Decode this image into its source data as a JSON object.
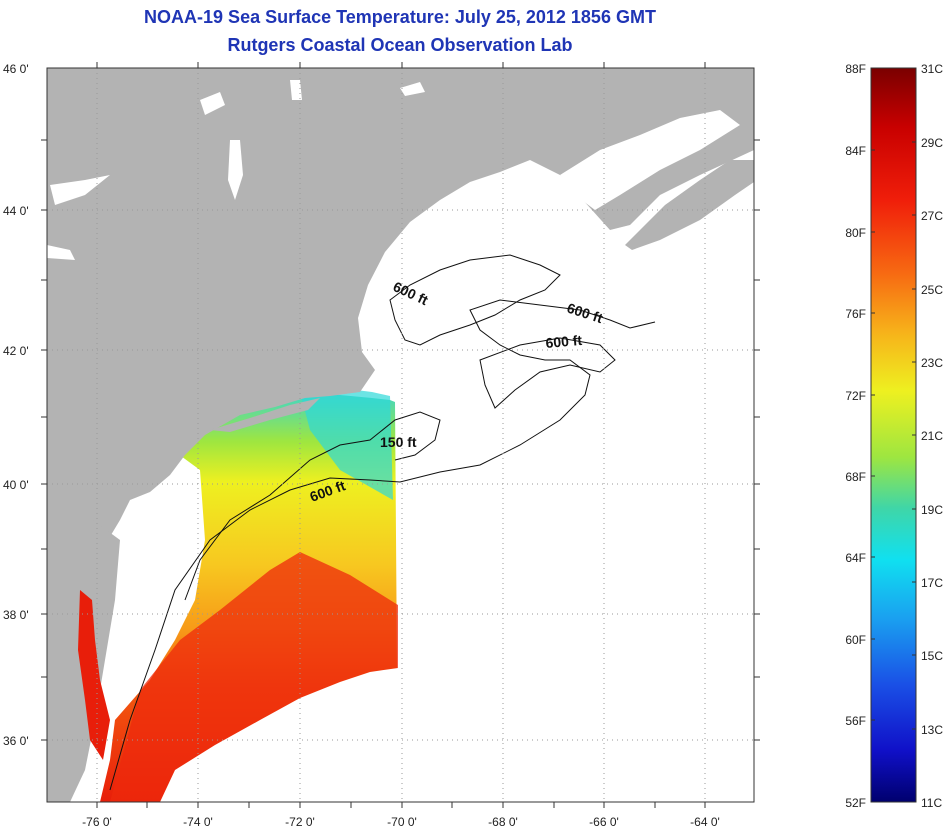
{
  "title": "NOAA-19 Sea Surface Temperature:  July 25, 2012 1856 GMT",
  "subtitle": "Rutgers Coastal Ocean Observation Lab",
  "map": {
    "lon_labels": [
      "-76 0'",
      "-74 0'",
      "-72 0'",
      "-70 0'",
      "-68 0'",
      "-66 0'",
      "-64 0'"
    ],
    "lat_labels": [
      "46 0'",
      "44 0'",
      "42 0'",
      "40 0'",
      "38 0'",
      "36 0'"
    ],
    "land_color": "#b3b3b3",
    "no_data_color": "#ffffff",
    "contour_labels": [
      "600 ft",
      "600 ft",
      "600 ft",
      "150 ft",
      "600 ft"
    ]
  },
  "colorbar": {
    "f_labels": [
      "88F",
      "84F",
      "80F",
      "76F",
      "72F",
      "68F",
      "64F",
      "60F",
      "56F",
      "52F"
    ],
    "c_labels": [
      "31C",
      "29C",
      "27C",
      "25C",
      "23C",
      "21C",
      "19C",
      "17C",
      "15C",
      "13C",
      "11C"
    ],
    "colors": [
      "#7a0000",
      "#c80000",
      "#f01e0a",
      "#f76a12",
      "#f7b21a",
      "#eef020",
      "#9ee640",
      "#3fd6a8",
      "#10e0f0",
      "#1aa0f0",
      "#1a50e6",
      "#1010c8",
      "#00006e"
    ]
  }
}
